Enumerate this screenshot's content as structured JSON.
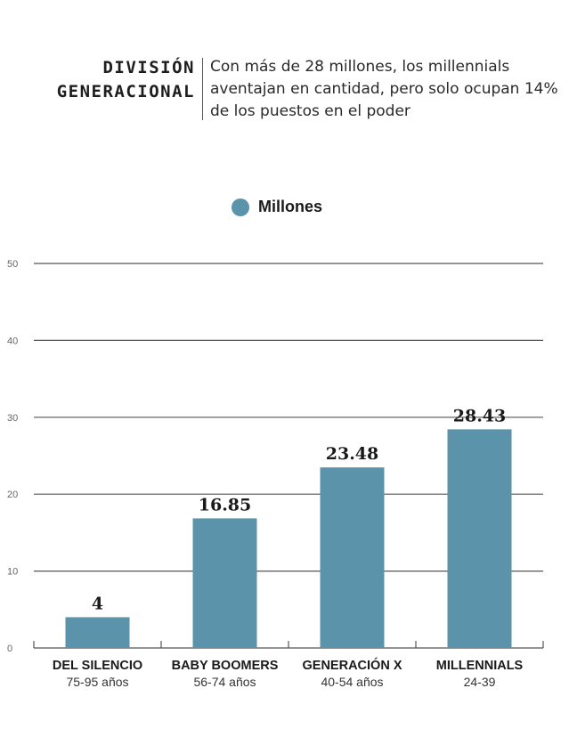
{
  "header": {
    "title_line1": "DIVISIÓN",
    "title_line2": "GENERACIONAL",
    "subtitle": "Con  más de 28 millones, los millennials aventajan en cantidad, pero solo ocupan 14% de los puestos en el poder"
  },
  "legend": {
    "label": "Millones"
  },
  "colors": {
    "bar": "#5a93aa",
    "grid": "#555555",
    "text": "#1a1a1a"
  },
  "chart_data": {
    "type": "bar",
    "categories": [
      "DEL SILENCIO",
      "BABY BOOMERS",
      "GENERACIÓN X",
      "MILLENNIALS"
    ],
    "category_ranges": [
      "75-95 años",
      "56-74 años",
      "40-54 años",
      "24-39"
    ],
    "series": [
      {
        "name": "Millones",
        "values": [
          4,
          16.85,
          23.48,
          28.43
        ]
      }
    ],
    "value_labels": [
      "4",
      "16.85",
      "23.48",
      "28.43"
    ],
    "yticks": [
      0,
      10,
      20,
      30,
      40,
      50
    ],
    "ylim": [
      0,
      50
    ],
    "grid": true,
    "legend_position": "top-center"
  }
}
